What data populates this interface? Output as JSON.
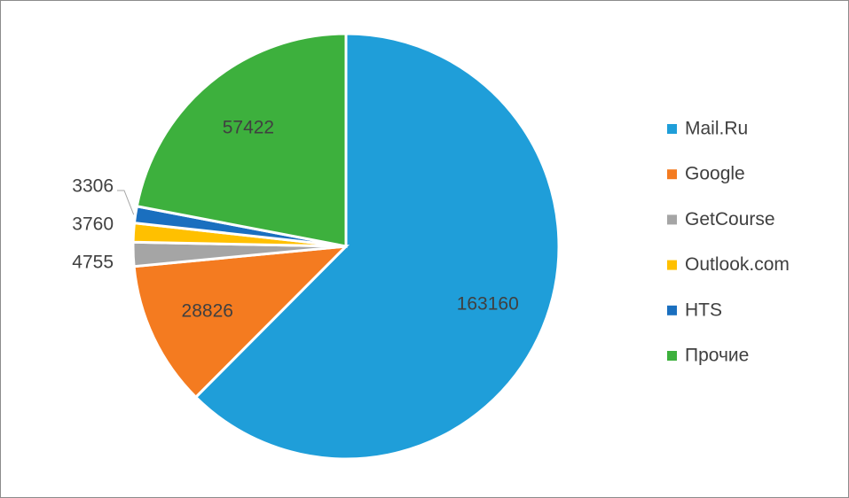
{
  "chart_data": {
    "type": "pie",
    "series": [
      {
        "name": "Mail.Ru",
        "color": "#1f9ed9",
        "values": [
          163160
        ]
      },
      {
        "name": "Google",
        "color": "#f47b20",
        "values": [
          28826
        ]
      },
      {
        "name": "GetCourse",
        "color": "#a5a5a5",
        "values": [
          4755
        ]
      },
      {
        "name": "Outlook.com",
        "color": "#ffc000",
        "values": [
          3760
        ]
      },
      {
        "name": "HTS",
        "color": "#1a6fbf",
        "values": [
          3306
        ]
      },
      {
        "name": "Прочие",
        "color": "#3db03d",
        "values": [
          57422
        ]
      }
    ],
    "legend": "right"
  }
}
